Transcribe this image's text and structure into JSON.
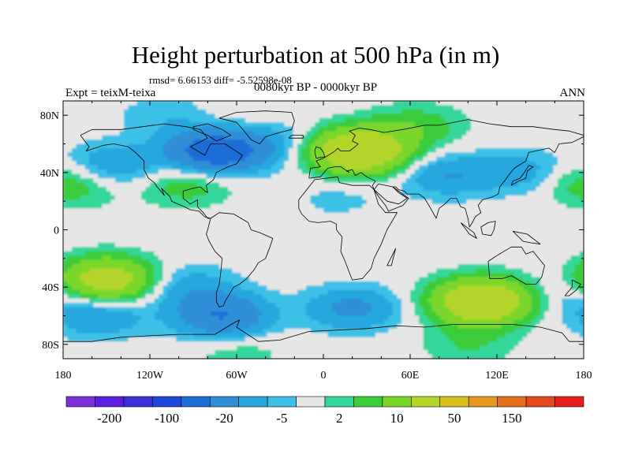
{
  "chart_data": {
    "type": "heatmap",
    "title": "Height perturbation at 500 hPa (in m)",
    "stats_text": "rmsd= 6.66153  diff= -5.52598e-08",
    "subtitle_left": "Expt = teixM-teixa",
    "subtitle_center": "0080kyr BP - 0000kyr BP",
    "subtitle_right": "ANN",
    "xlim": [
      -180,
      180
    ],
    "ylim": [
      -90,
      90
    ],
    "x_ticks": [
      {
        "value": -180,
        "label": "180"
      },
      {
        "value": -120,
        "label": "120W"
      },
      {
        "value": -60,
        "label": "60W"
      },
      {
        "value": 0,
        "label": "0"
      },
      {
        "value": 60,
        "label": "60E"
      },
      {
        "value": 120,
        "label": "120E"
      },
      {
        "value": 180,
        "label": "180"
      }
    ],
    "y_ticks": [
      {
        "value": 80,
        "label": "80N"
      },
      {
        "value": 40,
        "label": "40N"
      },
      {
        "value": 0,
        "label": "0"
      },
      {
        "value": -40,
        "label": "40S"
      },
      {
        "value": -80,
        "label": "80S"
      }
    ],
    "colorbar_labels": [
      {
        "index": 1,
        "label": "-200"
      },
      {
        "index": 3,
        "label": "-100"
      },
      {
        "index": 5,
        "label": "-20"
      },
      {
        "index": 7,
        "label": "-5"
      },
      {
        "index": 9,
        "label": "2"
      },
      {
        "index": 11,
        "label": "10"
      },
      {
        "index": 13,
        "label": "50"
      },
      {
        "index": 15,
        "label": "150"
      }
    ],
    "colorbar_colors": [
      "#7b2fd6",
      "#5a1fe0",
      "#3a2fd8",
      "#1f47d8",
      "#1e6ed6",
      "#2e8fd8",
      "#28a8de",
      "#3ec0e6",
      "#e6e6e6",
      "#36d69a",
      "#3acc3a",
      "#7ad62a",
      "#b4d62a",
      "#d8c01e",
      "#e39a1e",
      "#e4701e",
      "#e24a1e",
      "#e21e1e"
    ],
    "anomaly_centers": [
      {
        "lon": -170,
        "lat": 30,
        "value": 5
      },
      {
        "lon": -145,
        "lat": 45,
        "value": -10
      },
      {
        "lon": -75,
        "lat": 55,
        "value": -30
      },
      {
        "lon": -40,
        "lat": 62,
        "value": -8
      },
      {
        "lon": -95,
        "lat": 32,
        "value": 8
      },
      {
        "lon": -55,
        "lat": 70,
        "value": 4
      },
      {
        "lon": 25,
        "lat": 55,
        "value": 40
      },
      {
        "lon": 65,
        "lat": 72,
        "value": 8
      },
      {
        "lon": -110,
        "lat": 80,
        "value": -4
      },
      {
        "lon": 85,
        "lat": 38,
        "value": -10
      },
      {
        "lon": 140,
        "lat": 40,
        "value": -8
      },
      {
        "lon": 175,
        "lat": 35,
        "value": 5
      },
      {
        "lon": 10,
        "lat": 22,
        "value": -3
      },
      {
        "lon": -150,
        "lat": -35,
        "value": 30
      },
      {
        "lon": -155,
        "lat": -60,
        "value": -10
      },
      {
        "lon": -95,
        "lat": -40,
        "value": -8
      },
      {
        "lon": -70,
        "lat": -60,
        "value": -20
      },
      {
        "lon": 20,
        "lat": -55,
        "value": -12
      },
      {
        "lon": 110,
        "lat": -50,
        "value": 40
      },
      {
        "lon": 170,
        "lat": -45,
        "value": -5
      },
      {
        "lon": 100,
        "lat": -80,
        "value": 5
      },
      {
        "lon": -60,
        "lat": -85,
        "value": 4
      }
    ]
  }
}
